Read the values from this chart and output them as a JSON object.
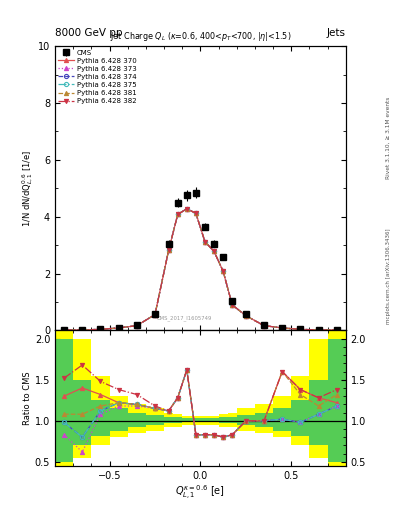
{
  "title_top": "8000 GeV pp",
  "title_right": "Jets",
  "plot_title": "Jet Charge $Q_L$ ($\\kappa$=0.6, 400<$p_T$<700, |$\\eta$|<1.5)",
  "xlabel": "$Q_{L,1}^{\\kappa=0.6}$ [e]",
  "ylabel_main": "1/N dN/dQ$_{L,1}^{0.6}$ [1/e]",
  "ylabel_ratio": "Ratio to CMS",
  "rivet_label": "Rivet 3.1.10, ≥ 3.1M events",
  "mcplots_label": "mcplots.cern.ch [arXiv:1306.3436]",
  "watermark": "CMS_2017_I1605749",
  "xlim": [
    -0.8,
    0.8
  ],
  "ylim_main": [
    0,
    10
  ],
  "ylim_ratio": [
    0.45,
    2.1
  ],
  "x_data": [
    -0.75,
    -0.65,
    -0.55,
    -0.45,
    -0.35,
    -0.25,
    -0.175,
    -0.125,
    -0.075,
    -0.025,
    0.025,
    0.075,
    0.125,
    0.175,
    0.25,
    0.35,
    0.45,
    0.55,
    0.65,
    0.75
  ],
  "cms_y": [
    0.02,
    0.02,
    0.04,
    0.1,
    0.18,
    0.58,
    3.05,
    4.5,
    4.75,
    4.85,
    3.65,
    3.05,
    2.6,
    1.05,
    0.58,
    0.18,
    0.1,
    0.04,
    0.02,
    0.02
  ],
  "cms_yerr": [
    0.005,
    0.005,
    0.01,
    0.02,
    0.04,
    0.08,
    0.12,
    0.15,
    0.18,
    0.18,
    0.12,
    0.12,
    0.1,
    0.07,
    0.08,
    0.04,
    0.02,
    0.01,
    0.005,
    0.005
  ],
  "py370_y": [
    0.02,
    0.02,
    0.04,
    0.09,
    0.17,
    0.56,
    2.82,
    4.08,
    4.28,
    4.12,
    3.12,
    2.78,
    2.08,
    0.9,
    0.52,
    0.17,
    0.09,
    0.04,
    0.02,
    0.02
  ],
  "py373_y": [
    0.02,
    0.02,
    0.04,
    0.09,
    0.17,
    0.56,
    2.82,
    4.08,
    4.28,
    4.12,
    3.12,
    2.78,
    2.08,
    0.9,
    0.52,
    0.17,
    0.09,
    0.04,
    0.02,
    0.02
  ],
  "py374_y": [
    0.02,
    0.02,
    0.04,
    0.09,
    0.17,
    0.56,
    2.82,
    4.08,
    4.28,
    4.12,
    3.12,
    2.78,
    2.08,
    0.9,
    0.52,
    0.17,
    0.09,
    0.04,
    0.02,
    0.02
  ],
  "py375_y": [
    0.02,
    0.02,
    0.04,
    0.09,
    0.17,
    0.56,
    2.82,
    4.08,
    4.28,
    4.12,
    3.12,
    2.78,
    2.08,
    0.9,
    0.52,
    0.17,
    0.09,
    0.04,
    0.02,
    0.02
  ],
  "py381_y": [
    0.02,
    0.02,
    0.04,
    0.09,
    0.17,
    0.56,
    2.82,
    4.08,
    4.28,
    4.12,
    3.12,
    2.78,
    2.08,
    0.9,
    0.52,
    0.17,
    0.09,
    0.04,
    0.02,
    0.02
  ],
  "py382_y": [
    0.02,
    0.02,
    0.04,
    0.09,
    0.17,
    0.56,
    2.82,
    4.08,
    4.28,
    4.12,
    3.12,
    2.78,
    2.08,
    0.9,
    0.52,
    0.17,
    0.09,
    0.04,
    0.02,
    0.02
  ],
  "ratio_370": [
    1.3,
    1.4,
    1.32,
    1.22,
    1.2,
    1.15,
    1.12,
    1.28,
    1.62,
    0.83,
    0.83,
    0.83,
    0.8,
    0.83,
    1.0,
    1.0,
    1.6,
    1.38,
    1.28,
    1.22
  ],
  "ratio_373": [
    0.83,
    0.62,
    1.08,
    1.18,
    1.18,
    1.15,
    1.12,
    1.28,
    1.62,
    0.83,
    0.83,
    0.83,
    0.8,
    0.83,
    1.0,
    1.0,
    1.02,
    0.98,
    1.08,
    1.18
  ],
  "ratio_374": [
    0.98,
    0.8,
    1.12,
    1.22,
    1.2,
    1.15,
    1.12,
    1.28,
    1.62,
    0.83,
    0.83,
    0.83,
    0.8,
    0.83,
    1.0,
    1.0,
    1.02,
    0.98,
    1.08,
    1.18
  ],
  "ratio_375": [
    0.98,
    0.8,
    1.12,
    1.22,
    1.2,
    1.15,
    1.12,
    1.28,
    1.62,
    0.83,
    0.83,
    0.83,
    0.8,
    0.83,
    1.0,
    1.0,
    1.02,
    0.98,
    1.08,
    1.18
  ],
  "ratio_381": [
    1.08,
    1.08,
    1.18,
    1.22,
    1.2,
    1.15,
    1.12,
    1.28,
    1.62,
    0.83,
    0.83,
    0.83,
    0.8,
    0.83,
    1.0,
    1.0,
    1.6,
    1.32,
    1.18,
    1.32
  ],
  "ratio_382": [
    1.52,
    1.68,
    1.48,
    1.38,
    1.32,
    1.18,
    1.12,
    1.28,
    1.62,
    0.83,
    0.83,
    0.83,
    0.8,
    0.83,
    1.0,
    1.0,
    1.6,
    1.38,
    1.28,
    1.38
  ],
  "band_edges": [
    -0.8,
    -0.7,
    -0.6,
    -0.5,
    -0.4,
    -0.3,
    -0.2,
    -0.15,
    -0.1,
    -0.05,
    0.0,
    0.05,
    0.1,
    0.15,
    0.2,
    0.3,
    0.4,
    0.5,
    0.6,
    0.7,
    0.8
  ],
  "green_lo": [
    0.5,
    0.7,
    0.82,
    0.88,
    0.92,
    0.95,
    0.97,
    0.97,
    0.98,
    0.98,
    0.98,
    0.98,
    0.97,
    0.97,
    0.95,
    0.92,
    0.88,
    0.82,
    0.7,
    0.5,
    0.5
  ],
  "green_hi": [
    2.0,
    1.5,
    1.25,
    1.15,
    1.1,
    1.07,
    1.05,
    1.04,
    1.03,
    1.03,
    1.03,
    1.03,
    1.04,
    1.05,
    1.07,
    1.1,
    1.15,
    1.25,
    1.5,
    2.0,
    2.0
  ],
  "yellow_lo": [
    0.45,
    0.55,
    0.7,
    0.8,
    0.85,
    0.88,
    0.92,
    0.93,
    0.95,
    0.95,
    0.95,
    0.95,
    0.93,
    0.92,
    0.88,
    0.85,
    0.8,
    0.7,
    0.55,
    0.45,
    0.45
  ],
  "yellow_hi": [
    2.1,
    2.0,
    1.55,
    1.3,
    1.2,
    1.15,
    1.1,
    1.08,
    1.06,
    1.06,
    1.06,
    1.06,
    1.08,
    1.1,
    1.15,
    1.2,
    1.3,
    1.55,
    2.0,
    2.1,
    2.1
  ],
  "color_370": "#e05050",
  "color_373": "#cc44cc",
  "color_374": "#4444bb",
  "color_375": "#44bbbb",
  "color_381": "#bb8833",
  "color_382": "#cc3344",
  "background_color": "#ffffff"
}
